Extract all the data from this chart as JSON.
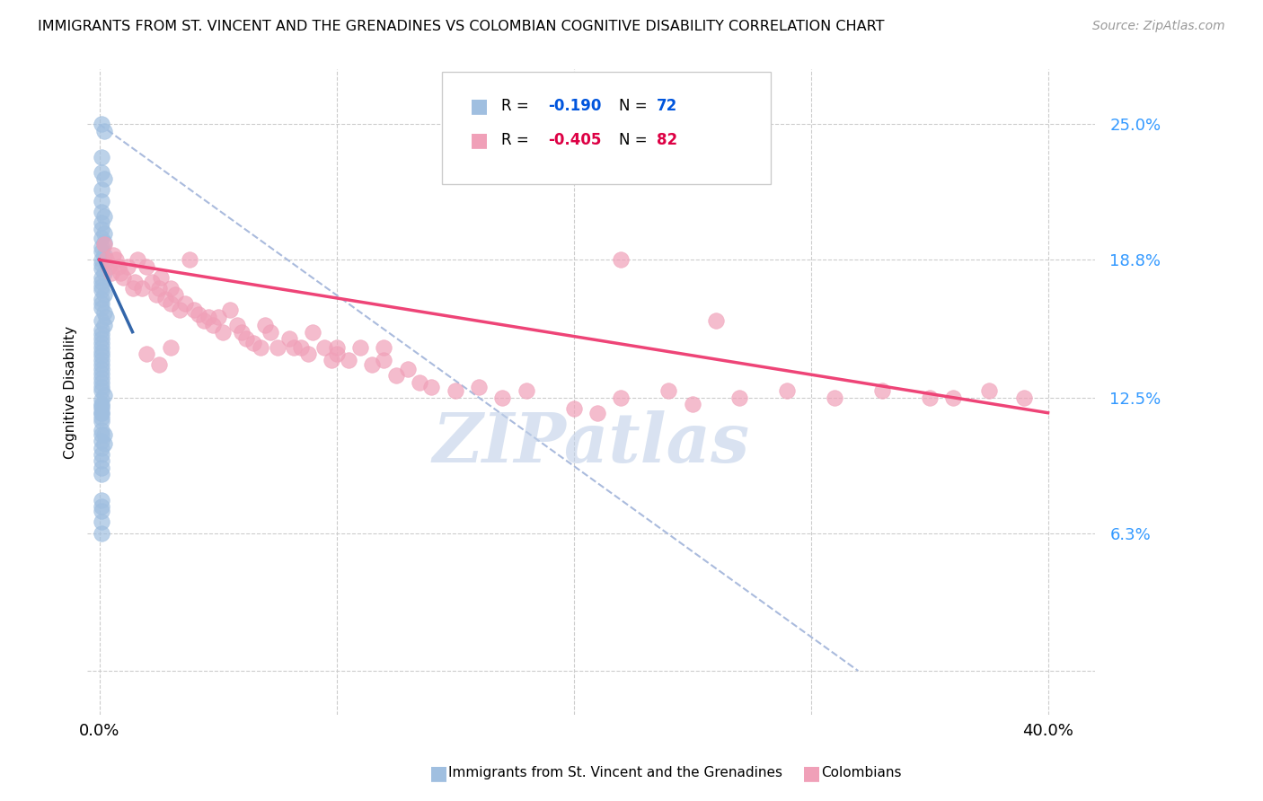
{
  "title": "IMMIGRANTS FROM ST. VINCENT AND THE GRENADINES VS COLOMBIAN COGNITIVE DISABILITY CORRELATION CHART",
  "source": "Source: ZipAtlas.com",
  "ylabel": "Cognitive Disability",
  "y_ticks": [
    0.0,
    0.063,
    0.125,
    0.188,
    0.25
  ],
  "y_tick_labels": [
    "",
    "6.3%",
    "12.5%",
    "18.8%",
    "25.0%"
  ],
  "color_blue": "#a0bfe0",
  "color_pink": "#f0a0b8",
  "color_blue_line": "#3366aa",
  "color_pink_line": "#ee4477",
  "color_dashed": "#aabbdd",
  "blue_scatter_x": [
    0.001,
    0.002,
    0.001,
    0.001,
    0.002,
    0.001,
    0.001,
    0.001,
    0.002,
    0.001,
    0.001,
    0.002,
    0.001,
    0.002,
    0.001,
    0.001,
    0.002,
    0.001,
    0.001,
    0.001,
    0.002,
    0.001,
    0.001,
    0.001,
    0.001,
    0.002,
    0.001,
    0.001,
    0.001,
    0.002,
    0.003,
    0.001,
    0.002,
    0.001,
    0.001,
    0.001,
    0.001,
    0.001,
    0.001,
    0.001,
    0.001,
    0.001,
    0.001,
    0.001,
    0.001,
    0.001,
    0.001,
    0.001,
    0.002,
    0.001,
    0.001,
    0.001,
    0.001,
    0.001,
    0.001,
    0.001,
    0.002,
    0.001,
    0.001,
    0.001,
    0.001,
    0.001,
    0.001,
    0.001,
    0.001,
    0.001,
    0.002,
    0.001,
    0.001,
    0.001,
    0.001,
    0.001
  ],
  "blue_scatter_y": [
    0.25,
    0.247,
    0.235,
    0.228,
    0.225,
    0.22,
    0.215,
    0.21,
    0.208,
    0.205,
    0.202,
    0.2,
    0.198,
    0.196,
    0.194,
    0.192,
    0.19,
    0.188,
    0.186,
    0.184,
    0.182,
    0.18,
    0.178,
    0.176,
    0.174,
    0.172,
    0.17,
    0.168,
    0.166,
    0.164,
    0.162,
    0.16,
    0.158,
    0.156,
    0.154,
    0.152,
    0.15,
    0.148,
    0.146,
    0.144,
    0.142,
    0.14,
    0.138,
    0.136,
    0.134,
    0.132,
    0.13,
    0.128,
    0.126,
    0.124,
    0.122,
    0.12,
    0.118,
    0.116,
    0.114,
    0.11,
    0.108,
    0.105,
    0.102,
    0.099,
    0.096,
    0.093,
    0.09,
    0.121,
    0.118,
    0.108,
    0.104,
    0.078,
    0.075,
    0.073,
    0.068,
    0.063
  ],
  "pink_scatter_x": [
    0.002,
    0.003,
    0.004,
    0.005,
    0.006,
    0.007,
    0.008,
    0.009,
    0.01,
    0.012,
    0.014,
    0.015,
    0.016,
    0.018,
    0.02,
    0.022,
    0.024,
    0.025,
    0.026,
    0.028,
    0.03,
    0.03,
    0.032,
    0.034,
    0.036,
    0.038,
    0.04,
    0.042,
    0.044,
    0.046,
    0.048,
    0.05,
    0.052,
    0.055,
    0.058,
    0.06,
    0.062,
    0.065,
    0.068,
    0.07,
    0.072,
    0.075,
    0.08,
    0.082,
    0.085,
    0.088,
    0.09,
    0.095,
    0.098,
    0.1,
    0.105,
    0.11,
    0.115,
    0.12,
    0.125,
    0.13,
    0.135,
    0.14,
    0.15,
    0.16,
    0.17,
    0.18,
    0.2,
    0.21,
    0.22,
    0.24,
    0.25,
    0.27,
    0.29,
    0.31,
    0.33,
    0.35,
    0.36,
    0.375,
    0.39,
    0.02,
    0.025,
    0.03,
    0.1,
    0.12,
    0.22,
    0.26
  ],
  "pink_scatter_y": [
    0.195,
    0.188,
    0.185,
    0.182,
    0.19,
    0.188,
    0.185,
    0.182,
    0.18,
    0.185,
    0.175,
    0.178,
    0.188,
    0.175,
    0.185,
    0.178,
    0.172,
    0.175,
    0.18,
    0.17,
    0.175,
    0.168,
    0.172,
    0.165,
    0.168,
    0.188,
    0.165,
    0.163,
    0.16,
    0.162,
    0.158,
    0.162,
    0.155,
    0.165,
    0.158,
    0.155,
    0.152,
    0.15,
    0.148,
    0.158,
    0.155,
    0.148,
    0.152,
    0.148,
    0.148,
    0.145,
    0.155,
    0.148,
    0.142,
    0.145,
    0.142,
    0.148,
    0.14,
    0.142,
    0.135,
    0.138,
    0.132,
    0.13,
    0.128,
    0.13,
    0.125,
    0.128,
    0.12,
    0.118,
    0.125,
    0.128,
    0.122,
    0.125,
    0.128,
    0.125,
    0.128,
    0.125,
    0.125,
    0.128,
    0.125,
    0.145,
    0.14,
    0.148,
    0.148,
    0.148,
    0.188,
    0.16
  ],
  "blue_line_x": [
    0.0,
    0.014
  ],
  "blue_line_y": [
    0.188,
    0.155
  ],
  "pink_line_x": [
    0.0,
    0.4
  ],
  "pink_line_y": [
    0.188,
    0.118
  ],
  "dashed_line_x": [
    0.0,
    0.32
  ],
  "dashed_line_y": [
    0.25,
    0.0
  ],
  "xlim": [
    -0.005,
    0.42
  ],
  "ylim": [
    -0.02,
    0.275
  ],
  "watermark": "ZIPatlas",
  "watermark_color": "#c0d0e8",
  "figsize": [
    14.06,
    8.92
  ],
  "dpi": 100
}
